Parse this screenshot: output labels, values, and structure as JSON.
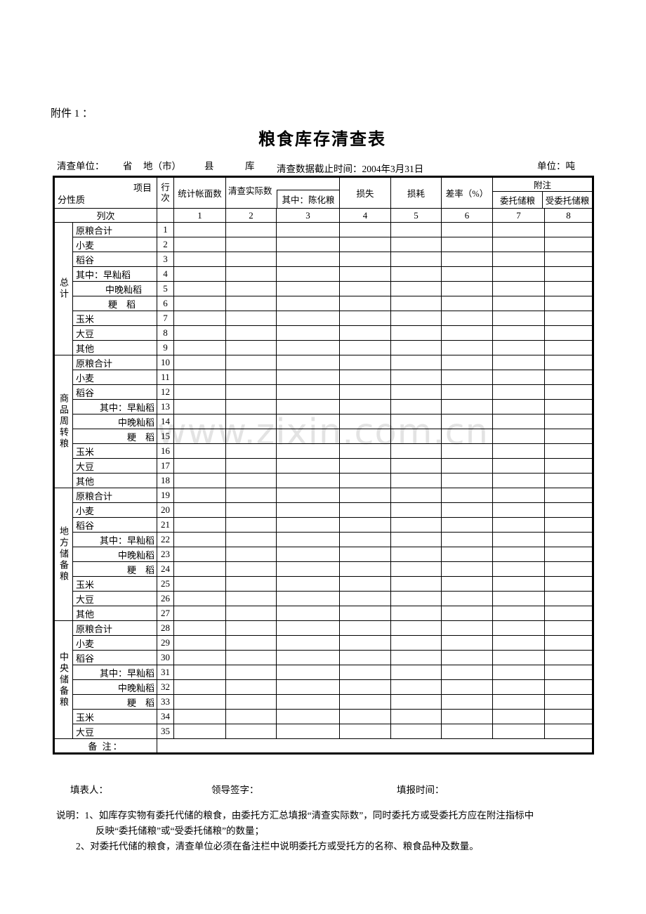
{
  "page": {
    "attachment_label": "附件 1 ：",
    "title": "粮食库存清查表",
    "info": {
      "survey_unit_label": "清查单位：",
      "province_label": "省",
      "city_label": "地（市）",
      "county_label": "县",
      "depot_label": "库",
      "cutoff_label": "清查数据截止时间：2004年3月31日",
      "unit_label": "单位：吨"
    },
    "watermark_text": "www.zixin.com.cn",
    "colors": {
      "ink": "#000000",
      "paper": "#ffffff",
      "watermark": "#e3e3e3"
    }
  },
  "table": {
    "corner": {
      "top_right": "项目",
      "bottom_left": "分性质"
    },
    "header": {
      "row_no": "行次",
      "book_count": "统计帐面数",
      "actual_count": "清查实际数",
      "actual_sub": "其中：陈化粮",
      "loss": "损失",
      "wastage": "损耗",
      "diff_rate": "差率（%）",
      "annotation": "附注",
      "annotation_sub1": "委托储粮",
      "annotation_sub2": "受委托储粮"
    },
    "colno_row": {
      "label": "列次",
      "numbers": [
        "1",
        "2",
        "3",
        "4",
        "5",
        "6",
        "7",
        "8"
      ]
    },
    "sections": [
      {
        "group": "总计",
        "rows": [
          {
            "label": "原粮合计",
            "no": "1",
            "align": "left"
          },
          {
            "label": "小麦",
            "no": "2",
            "align": "left"
          },
          {
            "label": "稻谷",
            "no": "3",
            "align": "left"
          },
          {
            "label": "其中：早籼稻",
            "no": "4",
            "align": "left"
          },
          {
            "label": "中晚籼稻",
            "no": "5",
            "align": "indent"
          },
          {
            "label": "粳　稻",
            "no": "6",
            "align": "indent2"
          },
          {
            "label": "玉米",
            "no": "7",
            "align": "left"
          },
          {
            "label": "大豆",
            "no": "8",
            "align": "left"
          },
          {
            "label": "其他",
            "no": "9",
            "align": "left"
          }
        ]
      },
      {
        "group": "商品周转粮",
        "rows": [
          {
            "label": "原粮合计",
            "no": "10",
            "align": "left"
          },
          {
            "label": "小麦",
            "no": "11",
            "align": "left"
          },
          {
            "label": "稻谷",
            "no": "12",
            "align": "left"
          },
          {
            "label": "其中：早籼稻",
            "no": "13",
            "align": "right"
          },
          {
            "label": "中晚籼稻",
            "no": "14",
            "align": "right"
          },
          {
            "label": "粳　稻",
            "no": "15",
            "align": "right"
          },
          {
            "label": "玉米",
            "no": "16",
            "align": "left"
          },
          {
            "label": "大豆",
            "no": "17",
            "align": "left"
          },
          {
            "label": "其他",
            "no": "18",
            "align": "left"
          }
        ]
      },
      {
        "group": "地方储备粮",
        "rows": [
          {
            "label": "原粮合计",
            "no": "19",
            "align": "left"
          },
          {
            "label": "小麦",
            "no": "20",
            "align": "left"
          },
          {
            "label": "稻谷",
            "no": "21",
            "align": "left"
          },
          {
            "label": "其中：早籼稻",
            "no": "22",
            "align": "right"
          },
          {
            "label": "中晚籼稻",
            "no": "23",
            "align": "right"
          },
          {
            "label": "粳　稻",
            "no": "24",
            "align": "right"
          },
          {
            "label": "玉米",
            "no": "25",
            "align": "left"
          },
          {
            "label": "大豆",
            "no": "26",
            "align": "left"
          },
          {
            "label": "其他",
            "no": "27",
            "align": "left"
          }
        ]
      },
      {
        "group": "中央储备粮",
        "rows": [
          {
            "label": "原粮合计",
            "no": "28",
            "align": "left"
          },
          {
            "label": "小麦",
            "no": "29",
            "align": "left"
          },
          {
            "label": "稻谷",
            "no": "30",
            "align": "left"
          },
          {
            "label": "其中：早籼稻",
            "no": "31",
            "align": "right"
          },
          {
            "label": "中晚籼稻",
            "no": "32",
            "align": "right"
          },
          {
            "label": "粳　稻",
            "no": "33",
            "align": "right"
          },
          {
            "label": "玉米",
            "no": "34",
            "align": "left"
          },
          {
            "label": "大豆",
            "no": "35",
            "align": "left"
          }
        ]
      }
    ],
    "remark_label": "备 注："
  },
  "footer": {
    "preparer_label": "填表人：",
    "leader_label": "领导签字：",
    "time_label": "填报时间："
  },
  "notes": {
    "line1": "说明：1、如库存实物有委托代储的粮食，由委托方汇总填报“清查实际数”，同时委托方或受委托方应在附注指标中",
    "line2": "反映“委托储粮”或“受委托储粮”的数量；",
    "line3": "2、对委托代储的粮食，清查单位必须在备注栏中说明委托方或受托方的名称、粮食品种及数量。"
  }
}
